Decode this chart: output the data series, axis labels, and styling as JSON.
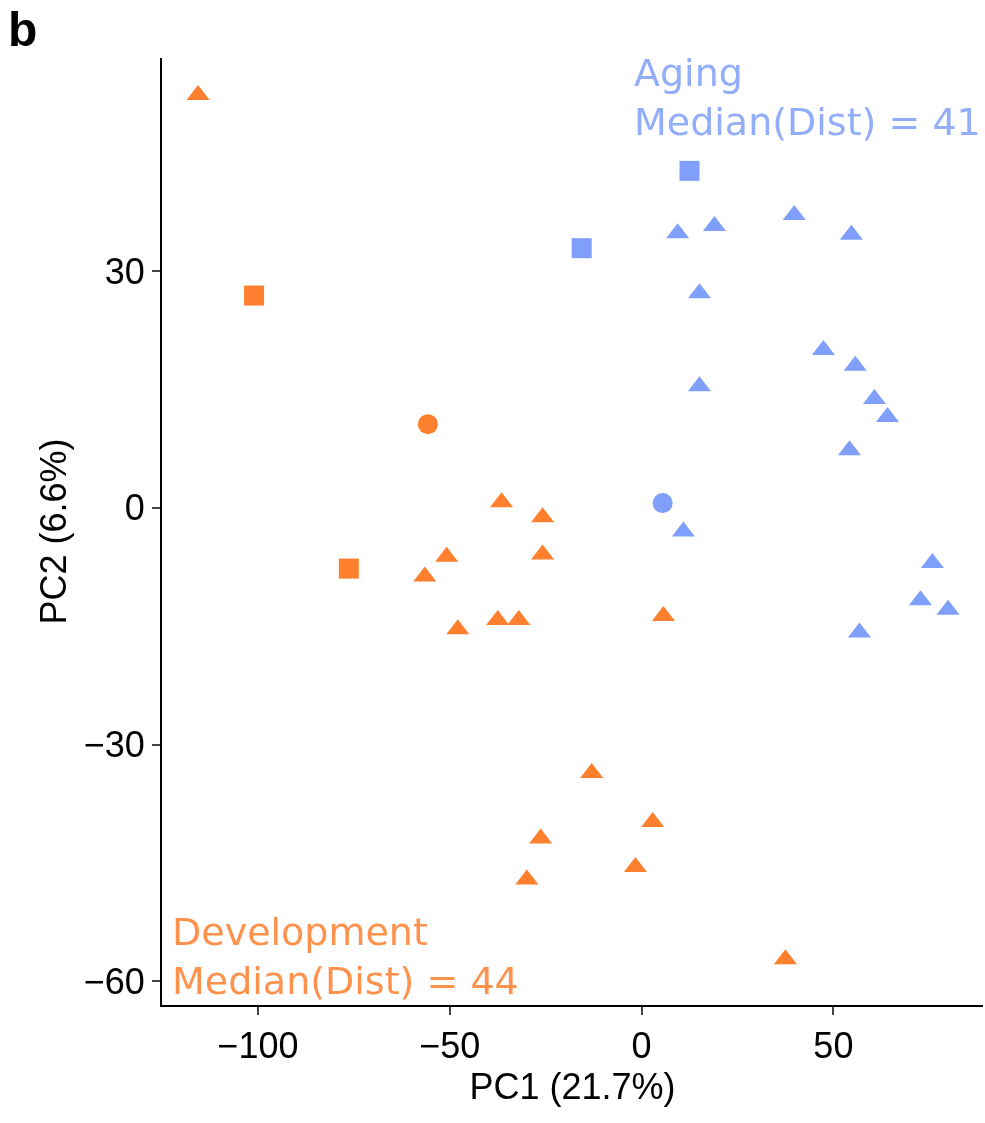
{
  "chart_data": {
    "type": "scatter",
    "xlabel": "PC1 (21.7%)",
    "ylabel": "PC2 (6.6%)",
    "xlim": [
      -125,
      89
    ],
    "ylim": [
      -63,
      57
    ],
    "xticks": [
      {
        "value": -100,
        "label": "−100"
      },
      {
        "value": -50,
        "label": "−50"
      },
      0,
      50
    ],
    "yticks": [
      {
        "value": -60,
        "label": "−60"
      },
      {
        "value": -30,
        "label": "−30"
      },
      0,
      30
    ],
    "grid": false,
    "annotations": [
      "b",
      "Aging\nMedian(Dist) = 41",
      "Development\nMedian(Dist) = 44"
    ],
    "series": [
      {
        "color": "#fe7f2d",
        "marker": "triangle",
        "x": [
          -115.6,
          -36.5,
          -25.8,
          -50.8,
          -25.8,
          -56.5,
          -47.9,
          -37.5,
          -32.0,
          5.7,
          -13.0,
          -26.3,
          2.9,
          -29.9,
          -1.6,
          37.5
        ],
        "values": [
          52.3,
          0.7,
          -1.2,
          -6.2,
          -5.9,
          -8.7,
          -15.4,
          -14.2,
          -14.2,
          -13.7,
          -33.6,
          -41.9,
          -39.8,
          -47.1,
          -45.5,
          -57.2
        ]
      },
      {
        "color": "#fe7f2d",
        "marker": "square",
        "x": [
          -101.0,
          -76.3
        ],
        "values": [
          26.9,
          -7.7
        ]
      },
      {
        "color": "#fe7f2d",
        "marker": "circle",
        "x": [
          -55.7
        ],
        "values": [
          10.6
        ]
      },
      {
        "color": "#7f9ffa",
        "marker": "triangle",
        "x": [
          9.4,
          19.0,
          39.8,
          54.7,
          15.1,
          47.4,
          55.7,
          15.1,
          60.7,
          64.1,
          54.2,
          10.9,
          75.8,
          72.7,
          79.9,
          56.8
        ],
        "values": [
          34.8,
          35.7,
          37.1,
          34.6,
          27.2,
          20.0,
          18.0,
          15.4,
          13.8,
          11.5,
          7.3,
          -3.0,
          -7.0,
          -11.7,
          -12.9,
          -15.8
        ]
      },
      {
        "color": "#7f9ffa",
        "marker": "square",
        "x": [
          12.5,
          -15.6
        ],
        "values": [
          42.7,
          32.9
        ]
      },
      {
        "color": "#7f9ffa",
        "marker": "circle",
        "x": [
          5.5
        ],
        "values": [
          0.6
        ]
      }
    ]
  }
}
